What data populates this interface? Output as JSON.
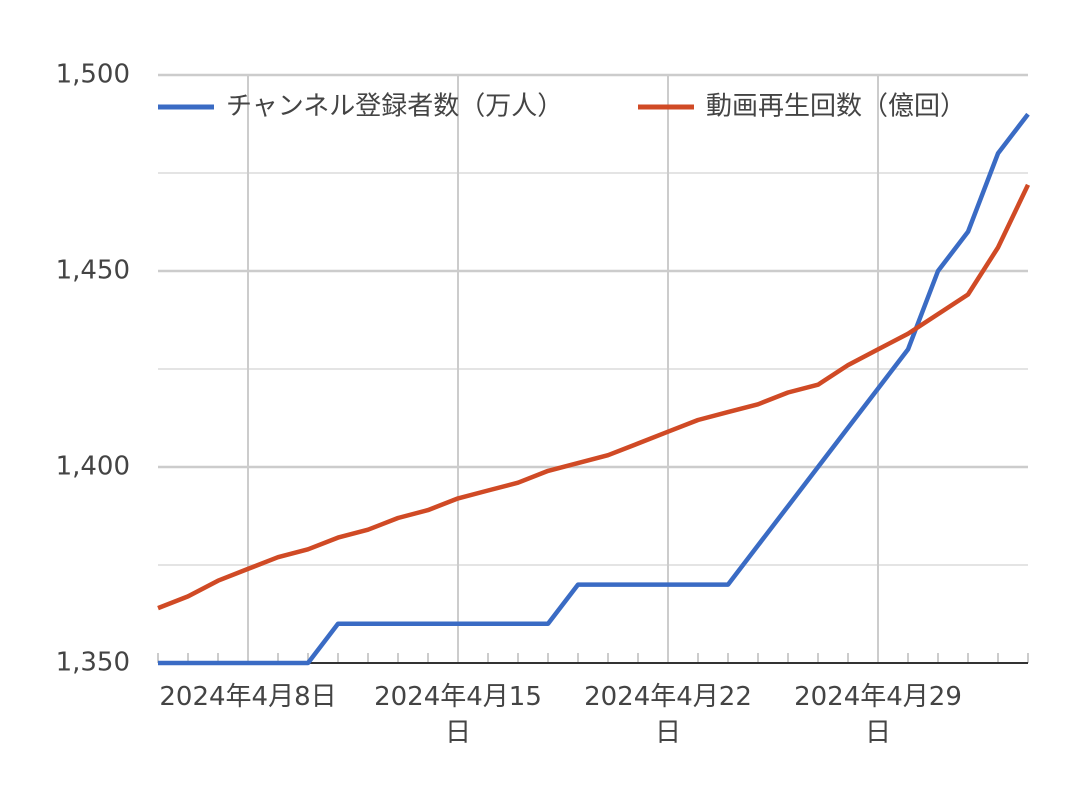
{
  "chart_data": {
    "type": "line",
    "x": [
      "2024-04-05",
      "2024-04-06",
      "2024-04-07",
      "2024-04-08",
      "2024-04-09",
      "2024-04-10",
      "2024-04-11",
      "2024-04-12",
      "2024-04-13",
      "2024-04-14",
      "2024-04-15",
      "2024-04-16",
      "2024-04-17",
      "2024-04-18",
      "2024-04-19",
      "2024-04-20",
      "2024-04-21",
      "2024-04-22",
      "2024-04-23",
      "2024-04-24",
      "2024-04-25",
      "2024-04-26",
      "2024-04-27",
      "2024-04-28",
      "2024-04-29",
      "2024-04-30",
      "2024-05-01",
      "2024-05-02",
      "2024-05-03",
      "2024-05-04"
    ],
    "series": [
      {
        "name": "チャンネル登録者数（万人）",
        "color": "#3a6bc4",
        "values": [
          1350,
          1350,
          1350,
          1350,
          1350,
          1350,
          1360,
          1360,
          1360,
          1360,
          1360,
          1360,
          1360,
          1360,
          1370,
          1370,
          1370,
          1370,
          1370,
          1370,
          1380,
          1390,
          1400,
          1410,
          1420,
          1430,
          1450,
          1460,
          1480,
          1490
        ]
      },
      {
        "name": "動画再生回数（億回）",
        "color": "#d04a25",
        "values": [
          1364,
          1367,
          1371,
          1374,
          1377,
          1379,
          1382,
          1384,
          1387,
          1389,
          1392,
          1394,
          1396,
          1399,
          1401,
          1403,
          1406,
          1409,
          1412,
          1414,
          1416,
          1419,
          1421,
          1426,
          1430,
          1434,
          1439,
          1444,
          1456,
          1472
        ]
      }
    ],
    "xlim": [
      "2024-04-05",
      "2024-05-04"
    ],
    "xticks": [
      {
        "value": "2024-04-08",
        "label": "2024年4月8日"
      },
      {
        "value": "2024-04-15",
        "label": "2024年4月15日"
      },
      {
        "value": "2024-04-22",
        "label": "2024年4月22日"
      },
      {
        "value": "2024-04-29",
        "label": "2024年4月29日"
      }
    ],
    "ylim": [
      1350,
      1500
    ],
    "yticks": [
      {
        "value": 1350,
        "label": "1,350"
      },
      {
        "value": 1400,
        "label": "1,400"
      },
      {
        "value": 1450,
        "label": "1,450"
      },
      {
        "value": 1500,
        "label": "1,500"
      }
    ],
    "minor_yticks": [
      1375,
      1425,
      1475
    ],
    "grid": true,
    "legend": "top"
  }
}
